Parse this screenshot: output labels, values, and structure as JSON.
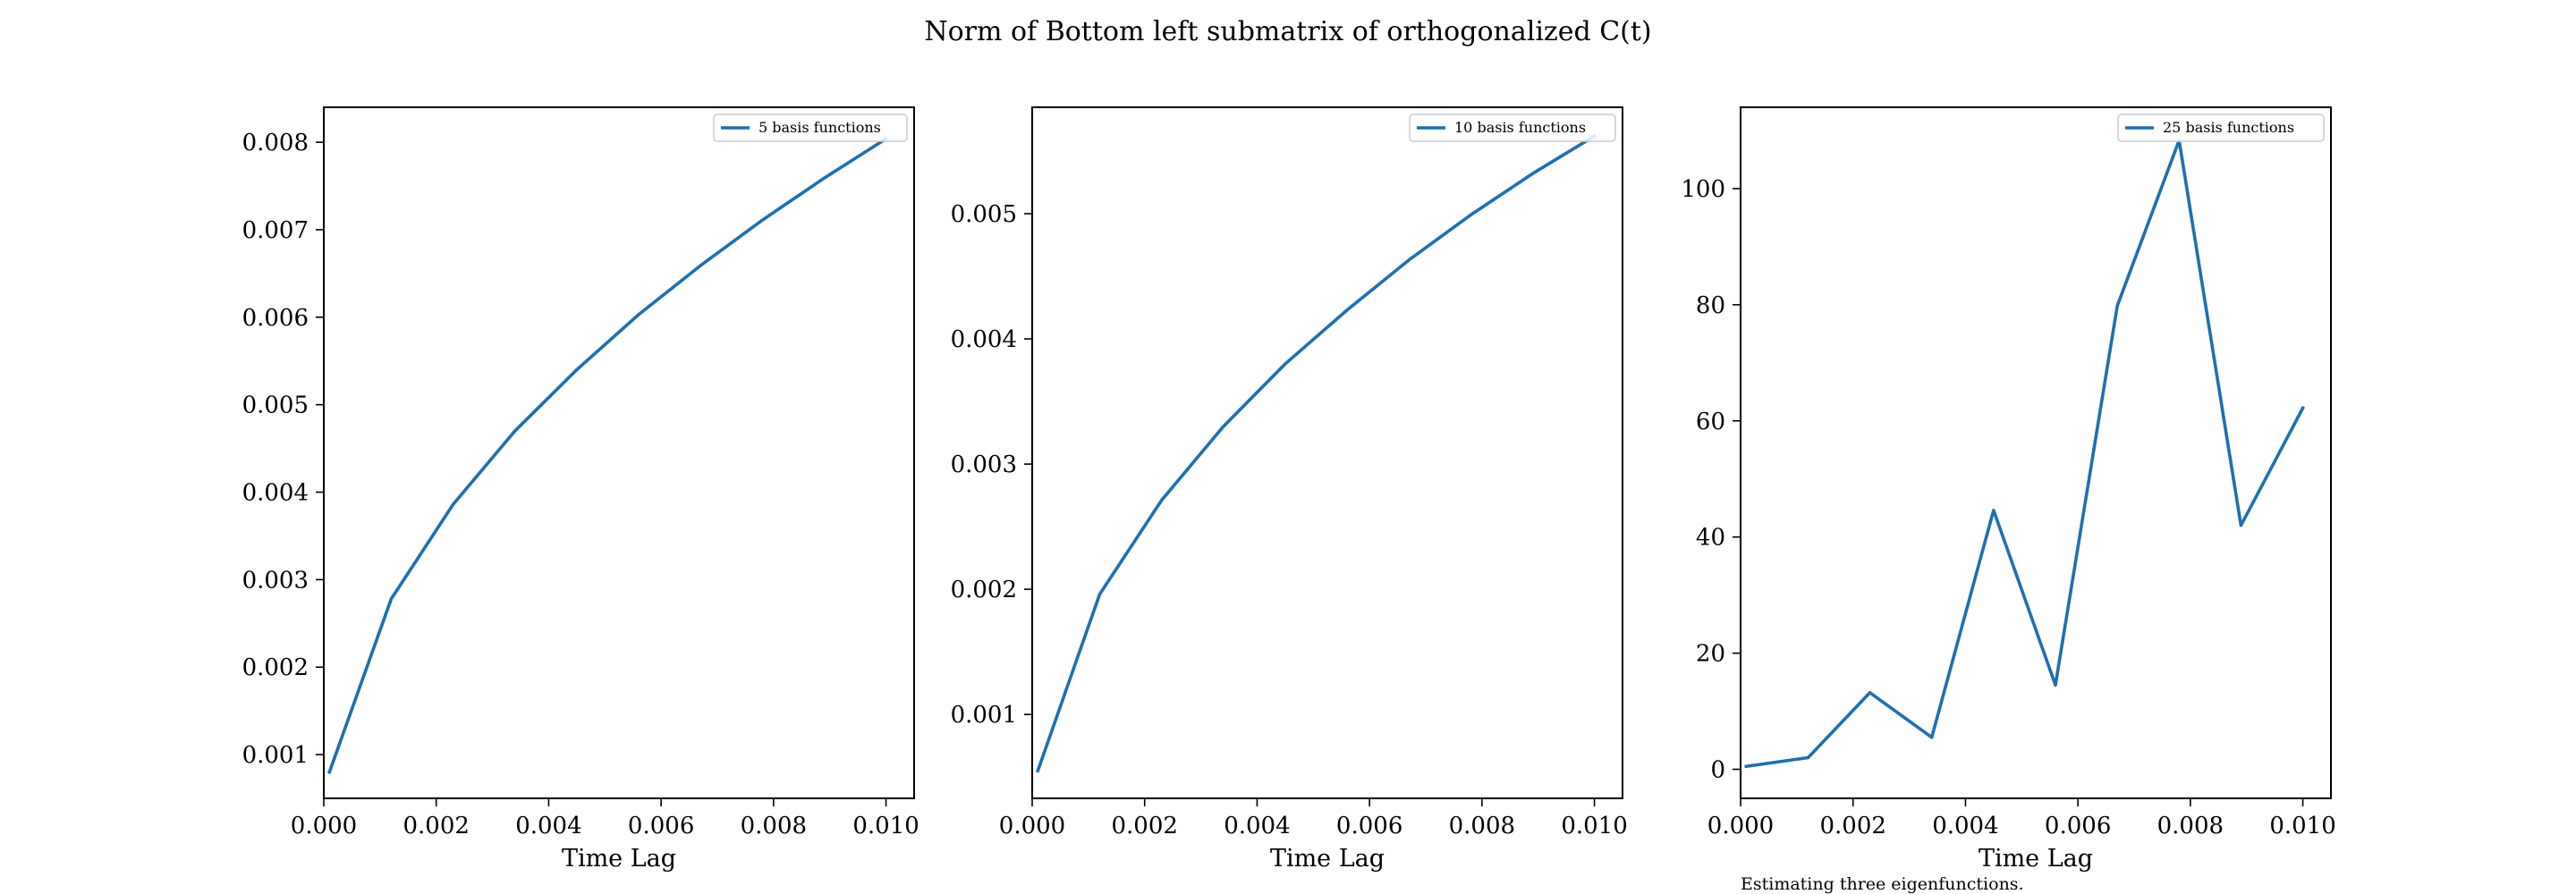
{
  "figure": {
    "suptitle": "Norm of Bottom left submatrix of orthogonalized C(t)",
    "footnote": "Estimating three eigenfunctions.",
    "line_color": "#1f6fb0"
  },
  "chart_data": [
    {
      "type": "line",
      "xlabel": "Time Lag",
      "ylabel": "",
      "xlim": [
        0.0,
        0.0105
      ],
      "ylim": [
        0.0005,
        0.0084
      ],
      "xticks": [
        "0.000",
        "0.002",
        "0.004",
        "0.006",
        "0.008",
        "0.010"
      ],
      "xtick_values": [
        0.0,
        0.002,
        0.004,
        0.006,
        0.008,
        0.01
      ],
      "yticks": [
        "0.001",
        "0.002",
        "0.003",
        "0.004",
        "0.005",
        "0.006",
        "0.007",
        "0.008"
      ],
      "ytick_values": [
        0.001,
        0.002,
        0.003,
        0.004,
        0.005,
        0.006,
        0.007,
        0.008
      ],
      "legend_location": "top-right",
      "series": [
        {
          "name": "5 basis functions",
          "x": [
            0.0001,
            0.0012,
            0.0023,
            0.0034,
            0.0045,
            0.0056,
            0.0067,
            0.0078,
            0.0089,
            0.01
          ],
          "y": [
            0.0008,
            0.00278,
            0.00386,
            0.0047,
            0.0054,
            0.00603,
            0.00659,
            0.00711,
            0.00759,
            0.00804
          ]
        }
      ]
    },
    {
      "type": "line",
      "xlabel": "Time Lag",
      "ylabel": "",
      "xlim": [
        0.0,
        0.0105
      ],
      "ylim": [
        0.00033,
        0.00585
      ],
      "xticks": [
        "0.000",
        "0.002",
        "0.004",
        "0.006",
        "0.008",
        "0.010"
      ],
      "xtick_values": [
        0.0,
        0.002,
        0.004,
        0.006,
        0.008,
        0.01
      ],
      "yticks": [
        "0.001",
        "0.002",
        "0.003",
        "0.004",
        "0.005"
      ],
      "ytick_values": [
        0.001,
        0.002,
        0.003,
        0.004,
        0.005
      ],
      "legend_location": "top-right",
      "series": [
        {
          "name": "10 basis functions",
          "x": [
            0.0001,
            0.0012,
            0.0023,
            0.0034,
            0.0045,
            0.0056,
            0.0067,
            0.0078,
            0.0089,
            0.01
          ],
          "y": [
            0.00055,
            0.00196,
            0.00271,
            0.0033,
            0.0038,
            0.00423,
            0.00463,
            0.00499,
            0.00532,
            0.00562
          ]
        }
      ]
    },
    {
      "type": "line",
      "xlabel": "Time Lag",
      "ylabel": "",
      "xlim": [
        0.0,
        0.0105
      ],
      "ylim": [
        -5,
        114
      ],
      "xticks": [
        "0.000",
        "0.002",
        "0.004",
        "0.006",
        "0.008",
        "0.010"
      ],
      "xtick_values": [
        0.0,
        0.002,
        0.004,
        0.006,
        0.008,
        0.01
      ],
      "yticks": [
        "0",
        "20",
        "40",
        "60",
        "80",
        "100"
      ],
      "ytick_values": [
        0,
        20,
        40,
        60,
        80,
        100
      ],
      "legend_location": "top-right",
      "series": [
        {
          "name": "25 basis functions",
          "x": [
            0.0001,
            0.0012,
            0.0023,
            0.0034,
            0.0045,
            0.0056,
            0.0067,
            0.0078,
            0.0089,
            0.01
          ],
          "y": [
            0.5,
            2,
            13.2,
            5.5,
            44.6,
            14.5,
            79.8,
            108.3,
            42,
            62.2
          ]
        }
      ]
    }
  ]
}
